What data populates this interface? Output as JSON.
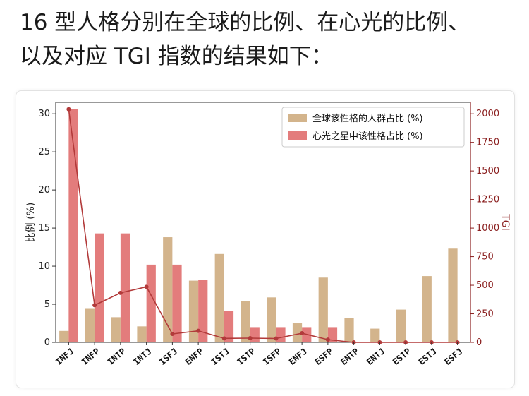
{
  "intro": {
    "line1": "16 型人格分别在全球的比例、在心光的比例、",
    "line2": "以及对应 TGI 指数的结果如下："
  },
  "colors": {
    "global_bar": "#d3b48c",
    "app_bar": "#e37c7c",
    "tgi_line": "#b23a3a",
    "right_axis": "#8b2020"
  },
  "chart_data": {
    "type": "bar",
    "categories": [
      "INFJ",
      "INFP",
      "INTP",
      "INTJ",
      "ISFJ",
      "ENFP",
      "ISTJ",
      "ISTP",
      "ISFP",
      "ENFJ",
      "ESFP",
      "ENTP",
      "ENTJ",
      "ESTP",
      "ESTJ",
      "ESFJ"
    ],
    "series": [
      {
        "name": "全球该性格的人群占比 (%)",
        "type": "bar",
        "axis": "left",
        "values": [
          1.5,
          4.4,
          3.3,
          2.1,
          13.8,
          8.1,
          11.6,
          5.4,
          5.9,
          2.5,
          8.5,
          3.2,
          1.8,
          4.3,
          8.7,
          12.3
        ]
      },
      {
        "name": "心光之星中该性格占比 (%)",
        "type": "bar",
        "axis": "left",
        "values": [
          30.6,
          14.3,
          14.3,
          10.2,
          10.2,
          8.2,
          4.1,
          2.0,
          2.0,
          2.0,
          2.0,
          0.0,
          0.0,
          0.0,
          0.0,
          0.0
        ]
      },
      {
        "name": "TGI",
        "type": "line",
        "axis": "right",
        "values": [
          2040,
          325,
          433,
          486,
          74,
          101,
          35,
          37,
          34,
          80,
          24,
          0,
          0,
          0,
          0,
          0
        ]
      }
    ],
    "ylabel": "比例 (%)",
    "y2label": "TGI",
    "ylim": [
      0,
      31.5
    ],
    "y2lim": [
      0,
      2100
    ],
    "yticks": [
      "0",
      "5",
      "10",
      "15",
      "20",
      "25",
      "30"
    ],
    "y2ticks": [
      "0",
      "250",
      "500",
      "750",
      "1000",
      "1250",
      "1500",
      "1750",
      "2000"
    ],
    "legend": "top-right",
    "grid": false
  }
}
